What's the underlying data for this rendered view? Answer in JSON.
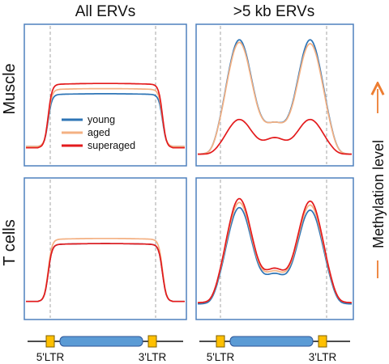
{
  "col_titles": [
    "All ERVs",
    ">5 kb ERVs"
  ],
  "row_labels": [
    "Muscle",
    "T cells"
  ],
  "side_label": "Methylation level",
  "legend": [
    {
      "name": "young",
      "color": "#2e75b6"
    },
    {
      "name": "aged",
      "color": "#f4b183"
    },
    {
      "name": "superaged",
      "color": "#e31a1c"
    }
  ],
  "ltr_labels": [
    "5'LTR",
    "3'LTR"
  ],
  "colors": {
    "frame": "#4f81bd",
    "guide": "#a6a6a6",
    "arrow": "#ed7d31",
    "ltr_box": "#ffc000",
    "erv_body": "#5b9bd5"
  },
  "chart_data": [
    {
      "type": "line",
      "title": "All ERVs",
      "row": "Muscle",
      "x": [
        0,
        0.1,
        0.16,
        0.84,
        0.9,
        1
      ],
      "series": [
        {
          "name": "young",
          "shape": "plateau",
          "base": 0.1,
          "peak": 0.51
        },
        {
          "name": "aged",
          "shape": "plateau",
          "base": 0.1,
          "peak": 0.55
        },
        {
          "name": "superaged",
          "shape": "plateau",
          "base": 0.09,
          "peak": 0.59
        }
      ],
      "ylim": [
        0,
        1
      ]
    },
    {
      "type": "line",
      "title": ">5 kb ERVs",
      "row": "Muscle",
      "series": [
        {
          "name": "young",
          "shape": "bimodal",
          "base": 0.04,
          "peaks": [
            0.93,
            0.93
          ],
          "valley": 0.29
        },
        {
          "name": "aged",
          "shape": "bimodal",
          "base": 0.04,
          "peaks": [
            0.91,
            0.9
          ],
          "valley": 0.29
        },
        {
          "name": "superaged",
          "shape": "bimodal",
          "base": 0.04,
          "peaks": [
            0.31,
            0.31
          ],
          "valley": 0.17
        }
      ],
      "ylim": [
        0,
        1
      ]
    },
    {
      "type": "line",
      "title": "All ERVs",
      "row": "T cells",
      "series": [
        {
          "name": "young",
          "shape": "plateau",
          "base": 0.09,
          "peak": 0.54
        },
        {
          "name": "aged",
          "shape": "plateau",
          "base": 0.09,
          "peak": 0.58
        },
        {
          "name": "superaged",
          "shape": "plateau",
          "base": 0.09,
          "peak": 0.54
        }
      ],
      "ylim": [
        0,
        1
      ]
    },
    {
      "type": "line",
      "title": ">5 kb ERVs",
      "row": "T cells",
      "series": [
        {
          "name": "young",
          "shape": "bimodal",
          "base": 0.07,
          "peaks": [
            0.82,
            0.8
          ],
          "valley": 0.31
        },
        {
          "name": "aged",
          "shape": "bimodal",
          "base": 0.08,
          "peaks": [
            0.86,
            0.84
          ],
          "valley": 0.33
        },
        {
          "name": "superaged",
          "shape": "bimodal",
          "base": 0.08,
          "peaks": [
            0.89,
            0.87
          ],
          "valley": 0.35
        }
      ],
      "ylim": [
        0,
        1
      ]
    }
  ]
}
